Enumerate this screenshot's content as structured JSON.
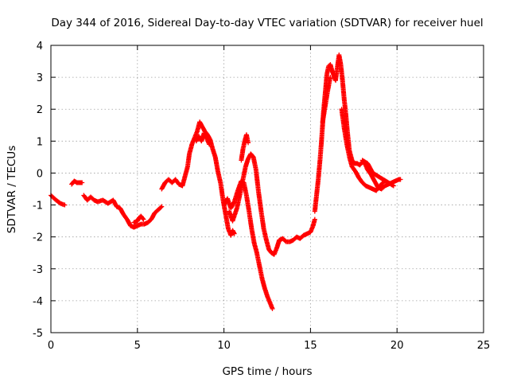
{
  "chart_data": {
    "type": "scatter",
    "title": "Day 344 of 2016, Sidereal Day-to-day VTEC variation (SDTVAR) for receiver huel",
    "xlabel": "GPS time / hours",
    "ylabel": "SDTVAR / TECUs",
    "xlim": [
      0,
      25
    ],
    "ylim": [
      -5,
      4
    ],
    "xticks": [
      "0",
      "5",
      "10",
      "15",
      "20",
      "25"
    ],
    "yticks": [
      "-5",
      "-4",
      "-3",
      "-2",
      "-1",
      "0",
      "1",
      "2",
      "3",
      "4"
    ],
    "grid": true,
    "marker": "+",
    "color": "#ff0000",
    "series": [
      {
        "name": "SDTVAR",
        "segments": [
          {
            "x": [
              0.0,
              0.3,
              0.55,
              0.8
            ],
            "y": [
              -0.7,
              -0.85,
              -0.95,
              -1.0
            ]
          },
          {
            "x": [
              1.2,
              1.35,
              1.5,
              1.65,
              1.8
            ],
            "y": [
              -0.35,
              -0.25,
              -0.3,
              -0.3,
              -0.3
            ]
          },
          {
            "x": [
              1.9,
              2.1,
              2.3,
              2.5,
              2.7,
              3.0,
              3.3,
              3.6,
              3.8,
              4.0,
              4.2,
              4.4,
              4.6,
              4.8,
              5.0,
              5.2,
              5.4,
              5.6,
              5.8,
              6.0,
              6.2,
              6.4
            ],
            "y": [
              -0.7,
              -0.85,
              -0.75,
              -0.85,
              -0.9,
              -0.85,
              -0.95,
              -0.85,
              -1.05,
              -1.1,
              -1.3,
              -1.45,
              -1.65,
              -1.7,
              -1.65,
              -1.6,
              -1.6,
              -1.55,
              -1.45,
              -1.25,
              -1.15,
              -1.05
            ]
          },
          {
            "x": [
              4.8,
              5.0,
              5.1,
              5.2,
              5.35
            ],
            "y": [
              -1.55,
              -1.5,
              -1.4,
              -1.35,
              -1.45
            ]
          },
          {
            "x": [
              6.4,
              6.6,
              6.8,
              7.0,
              7.2,
              7.4,
              7.6,
              7.75,
              7.9,
              8.0,
              8.15,
              8.3,
              8.45,
              8.6,
              8.75,
              8.9,
              9.05,
              9.2,
              9.35,
              9.5,
              9.65,
              9.8,
              9.95,
              10.1,
              10.25,
              10.4,
              10.5,
              10.6
            ],
            "y": [
              -0.5,
              -0.3,
              -0.2,
              -0.3,
              -0.2,
              -0.35,
              -0.4,
              -0.1,
              0.2,
              0.6,
              0.9,
              1.1,
              1.3,
              1.6,
              1.45,
              1.3,
              1.2,
              1.05,
              0.75,
              0.5,
              0.05,
              -0.3,
              -0.85,
              -1.3,
              -1.75,
              -1.95,
              -1.8,
              -1.9
            ]
          },
          {
            "x": [
              8.4,
              8.55,
              8.7,
              8.85,
              9.0,
              9.15
            ],
            "y": [
              1.0,
              1.15,
              1.0,
              1.25,
              1.1,
              0.9
            ]
          },
          {
            "x": [
              10.0,
              10.2,
              10.4,
              10.6,
              10.8,
              11.0,
              11.15,
              11.3,
              11.45,
              11.6,
              11.75,
              11.9,
              12.05,
              12.2,
              12.35,
              12.5,
              12.65,
              12.8
            ],
            "y": [
              -1.0,
              -0.8,
              -1.1,
              -0.9,
              -0.55,
              -0.25,
              -0.3,
              -0.7,
              -1.2,
              -1.75,
              -2.2,
              -2.5,
              -2.9,
              -3.3,
              -3.6,
              -3.85,
              -4.05,
              -4.25
            ]
          },
          {
            "x": [
              10.3,
              10.5,
              10.75,
              10.95,
              11.1,
              11.25,
              11.4,
              11.55,
              11.7,
              11.85,
              12.0,
              12.15,
              12.3,
              12.45,
              12.6,
              12.75,
              12.9,
              13.05,
              13.2,
              13.4,
              13.6,
              13.8,
              14.0,
              14.2,
              14.4,
              14.6,
              14.8,
              15.0,
              15.15,
              15.25
            ],
            "y": [
              -1.2,
              -1.5,
              -1.1,
              -0.6,
              -0.2,
              0.2,
              0.45,
              0.6,
              0.5,
              0.1,
              -0.6,
              -1.2,
              -1.75,
              -2.1,
              -2.4,
              -2.5,
              -2.55,
              -2.35,
              -2.1,
              -2.05,
              -2.15,
              -2.15,
              -2.1,
              -2.0,
              -2.05,
              -1.95,
              -1.9,
              -1.85,
              -1.65,
              -1.45
            ]
          },
          {
            "x": [
              11.0,
              11.1,
              11.2,
              11.3,
              11.4
            ],
            "y": [
              0.4,
              0.75,
              1.0,
              1.2,
              0.95
            ]
          },
          {
            "x": [
              15.25,
              15.35,
              15.45,
              15.55,
              15.65,
              15.75,
              15.85,
              15.95,
              16.05,
              16.15,
              16.25,
              16.35,
              16.45,
              16.55,
              16.65,
              16.75,
              16.85,
              16.95,
              17.05,
              17.15,
              17.25,
              17.4,
              17.55,
              17.7,
              17.85,
              18.0,
              18.15,
              18.3,
              18.5,
              18.7,
              18.9,
              19.1,
              19.3,
              19.5,
              19.7,
              19.9,
              20.1,
              20.2
            ],
            "y": [
              -1.2,
              -0.7,
              -0.2,
              0.4,
              1.1,
              1.9,
              2.5,
              3.1,
              3.35,
              3.4,
              3.2,
              3.05,
              2.9,
              3.3,
              3.7,
              3.4,
              2.9,
              2.3,
              1.8,
              1.2,
              0.7,
              0.4,
              0.3,
              0.3,
              0.25,
              0.35,
              0.3,
              0.1,
              -0.05,
              -0.25,
              -0.45,
              -0.5,
              -0.4,
              -0.35,
              -0.3,
              -0.25,
              -0.2,
              -0.2
            ]
          },
          {
            "x": [
              16.8,
              16.95,
              17.1,
              17.25,
              17.4,
              17.6,
              17.8,
              18.0,
              18.2,
              18.4,
              18.6,
              18.8,
              19.0,
              19.2
            ],
            "y": [
              2.0,
              1.4,
              0.9,
              0.5,
              0.2,
              0.05,
              -0.15,
              -0.3,
              -0.4,
              -0.45,
              -0.5,
              -0.55,
              -0.4,
              -0.3
            ]
          },
          {
            "x": [
              18.0,
              18.3,
              18.6,
              18.9,
              19.2,
              19.5,
              19.8
            ],
            "y": [
              0.4,
              0.3,
              0.0,
              -0.1,
              -0.2,
              -0.3,
              -0.4
            ]
          },
          {
            "x": [
              15.7,
              15.85,
              16.0,
              16.15
            ],
            "y": [
              1.6,
              2.1,
              2.6,
              3.0
            ]
          }
        ]
      }
    ]
  }
}
